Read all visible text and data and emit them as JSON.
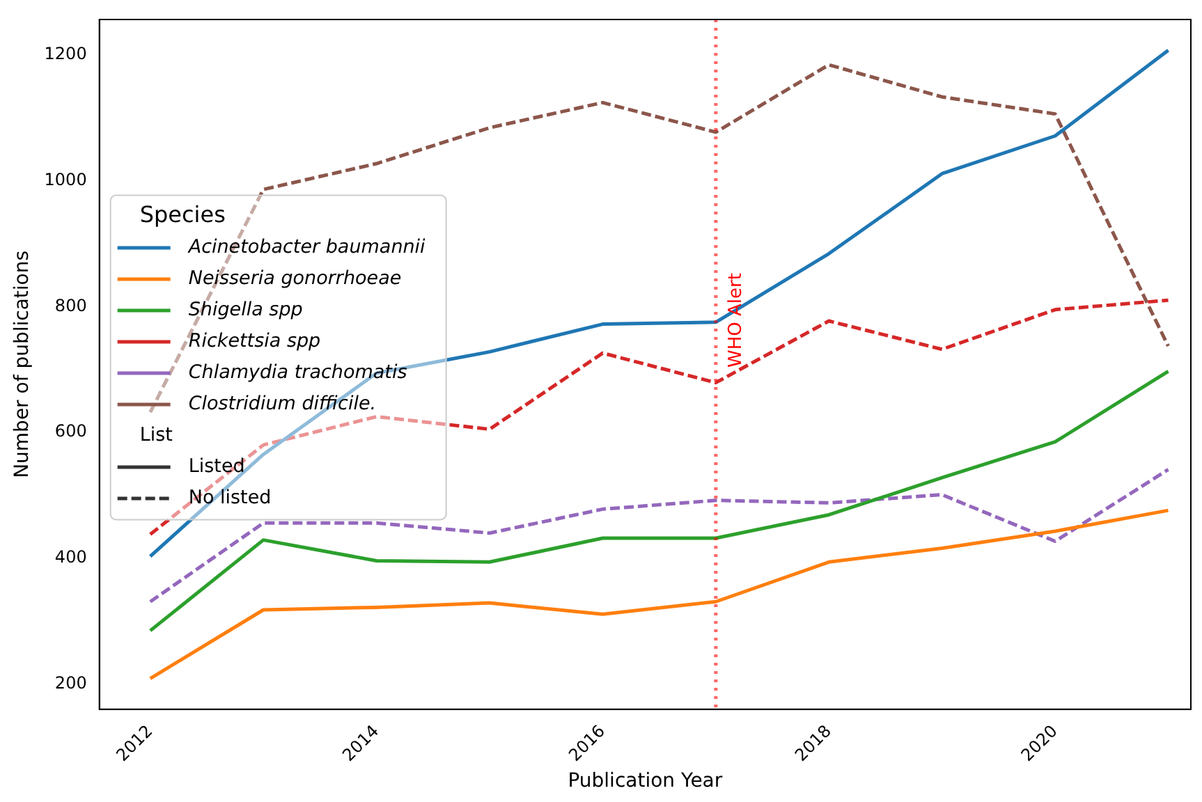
{
  "chart_data": {
    "type": "line",
    "xlabel": "Publication Year",
    "ylabel": "Number of publications",
    "legend_title": "Species",
    "legend": "left",
    "grid": false,
    "marker": "none",
    "x": [
      2012,
      2013,
      2014,
      2015,
      2016,
      2017,
      2018,
      2019,
      2020,
      2021
    ],
    "xlim": [
      2011.55,
      2021.2
    ],
    "xticks": [
      2012,
      2014,
      2016,
      2018,
      2020
    ],
    "ylim": [
      160,
      1256
    ],
    "yticks": [
      200,
      400,
      600,
      800,
      1000,
      1200
    ],
    "series": [
      {
        "name": "Acinetobacter baumannii",
        "color": "#1f77b4",
        "line_style": "solid",
        "values": [
          403,
          565,
          694,
          728,
          772,
          775,
          884,
          1011,
          1071,
          1207
        ]
      },
      {
        "name": "Neisseria gonorrhoeae",
        "color": "#ff7f0e",
        "line_style": "solid",
        "values": [
          209,
          318,
          322,
          329,
          311,
          331,
          394,
          416,
          443,
          476
        ]
      },
      {
        "name": "Shigella spp",
        "color": "#2ca02c",
        "line_style": "solid",
        "values": [
          285,
          429,
          396,
          394,
          432,
          432,
          469,
          528,
          585,
          697
        ]
      },
      {
        "name": "Rickettsia spp",
        "color": "#d62728",
        "line_style": "dashed",
        "values": [
          438,
          580,
          625,
          605,
          726,
          679,
          777,
          732,
          795,
          810
        ]
      },
      {
        "name": "Chlamydia trachomatis",
        "color": "#9467bd",
        "line_style": "dashed",
        "values": [
          331,
          456,
          456,
          440,
          478,
          492,
          488,
          501,
          427,
          541
        ]
      },
      {
        "name": "Clostridium difficile.",
        "color": "#8c564b",
        "line_style": "dashed",
        "values": [
          632,
          986,
          1027,
          1084,
          1124,
          1077,
          1184,
          1133,
          1106,
          737
        ]
      }
    ],
    "ref_lines": [
      {
        "axis": "x",
        "value": 2017,
        "label": "WHO Alert",
        "color": "#ff0000",
        "line_style": "dotted"
      }
    ],
    "annotations": [
      "List",
      "Listed",
      "No listed"
    ]
  }
}
